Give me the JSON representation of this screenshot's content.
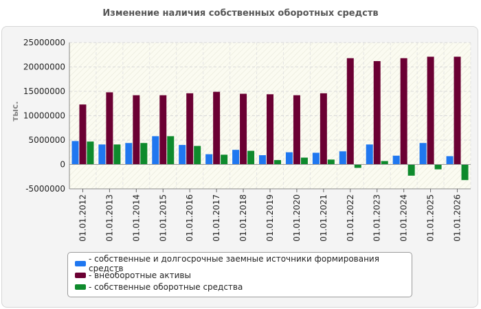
{
  "chart_data": {
    "type": "bar",
    "title": "Изменение наличия собственных оборотных средств",
    "ylabel": "тыс.",
    "xlabel": "",
    "ylim": [
      -5000000,
      25000000
    ],
    "yticks": [
      -5000000,
      0,
      5000000,
      10000000,
      15000000,
      20000000,
      25000000
    ],
    "grid": true,
    "legend_position": "bottom",
    "categories": [
      "01.01.2012",
      "01.01.2013",
      "01.01.2014",
      "01.01.2015",
      "01.01.2016",
      "01.01.2017",
      "01.01.2018",
      "01.01.2019",
      "01.01.2020",
      "01.01.2021",
      "01.01.2022",
      "01.01.2023",
      "01.01.2024",
      "01.01.2025",
      "01.01.2026"
    ],
    "series": [
      {
        "name": "- собственные и долгосрочные заемные источники формирования средств",
        "color": "#1f77f0",
        "values": [
          4800000,
          4100000,
          4400000,
          5800000,
          4000000,
          2100000,
          3000000,
          1900000,
          2500000,
          2400000,
          2700000,
          4100000,
          1800000,
          4400000,
          1700000
        ]
      },
      {
        "name": "- внеоборотные активы",
        "color": "#6b0033",
        "values": [
          12300000,
          14800000,
          14200000,
          14200000,
          14600000,
          14900000,
          14500000,
          14400000,
          14200000,
          14600000,
          21800000,
          21200000,
          21800000,
          22100000,
          22100000
        ]
      },
      {
        "name": "- собственные оборотные средства",
        "color": "#0e8a2c",
        "values": [
          4700000,
          4100000,
          4400000,
          5800000,
          3800000,
          2000000,
          2800000,
          900000,
          1400000,
          1000000,
          -700000,
          700000,
          -2300000,
          -1000000,
          -3200000
        ]
      }
    ]
  }
}
